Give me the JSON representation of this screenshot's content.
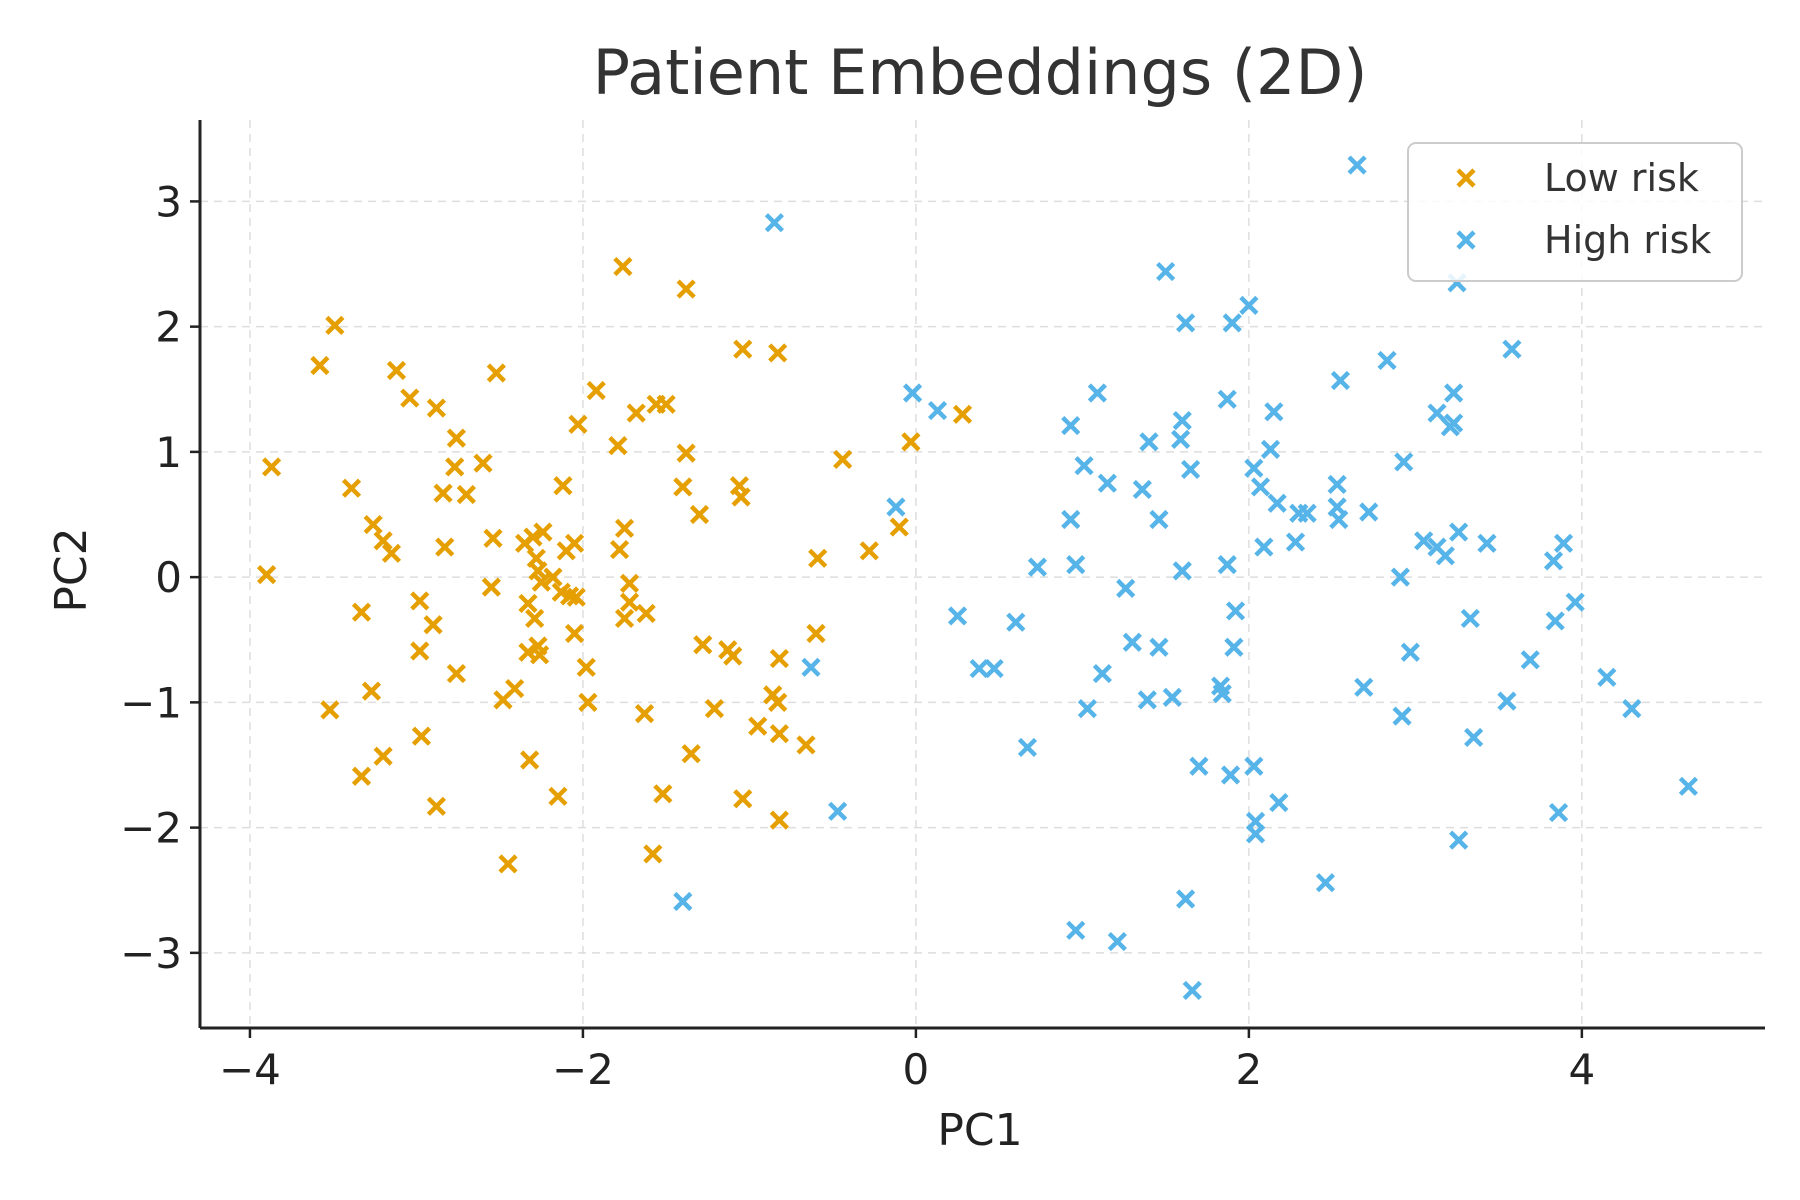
{
  "chart_data": {
    "type": "scatter",
    "title": "Patient Embeddings (2D)",
    "xlabel": "PC1",
    "ylabel": "PC2",
    "xlim": [
      -4.3,
      5.1
    ],
    "ylim": [
      -3.6,
      3.65
    ],
    "xticks": [
      -4,
      -2,
      0,
      2,
      4
    ],
    "yticks": [
      -3,
      -2,
      -1,
      0,
      1,
      2,
      3
    ],
    "xtick_labels": [
      "−4",
      "−2",
      "0",
      "2",
      "4"
    ],
    "ytick_labels": [
      "−3",
      "−2",
      "−1",
      "0",
      "1",
      "2",
      "3"
    ],
    "grid": true,
    "legend_position": "top-right",
    "marker": "x",
    "series": [
      {
        "name": "Low risk",
        "color": "#E69F00",
        "points": [
          [
            -3.9,
            0.02
          ],
          [
            -3.87,
            0.88
          ],
          [
            -3.58,
            1.69
          ],
          [
            -3.52,
            -1.06
          ],
          [
            -3.49,
            2.01
          ],
          [
            -3.39,
            0.71
          ],
          [
            -3.33,
            -0.28
          ],
          [
            -3.33,
            -1.59
          ],
          [
            -3.26,
            0.42
          ],
          [
            -3.27,
            -0.91
          ],
          [
            -3.2,
            0.29
          ],
          [
            -3.2,
            -1.43
          ],
          [
            -3.15,
            0.19
          ],
          [
            -3.12,
            1.65
          ],
          [
            -3.04,
            1.43
          ],
          [
            -2.98,
            -0.19
          ],
          [
            -2.98,
            -0.59
          ],
          [
            -2.97,
            -1.27
          ],
          [
            -2.9,
            -0.38
          ],
          [
            -2.88,
            -1.83
          ],
          [
            -2.88,
            1.35
          ],
          [
            -2.84,
            0.67
          ],
          [
            -2.83,
            0.24
          ],
          [
            -2.77,
            0.88
          ],
          [
            -2.76,
            1.11
          ],
          [
            -2.76,
            -0.77
          ],
          [
            -2.7,
            0.66
          ],
          [
            -2.6,
            0.91
          ],
          [
            -2.55,
            -0.08
          ],
          [
            -2.54,
            0.31
          ],
          [
            -2.52,
            1.63
          ],
          [
            -2.48,
            -0.98
          ],
          [
            -2.45,
            -2.29
          ],
          [
            -2.41,
            -0.89
          ],
          [
            -2.35,
            0.27
          ],
          [
            -2.33,
            -0.21
          ],
          [
            -2.33,
            -0.6
          ],
          [
            -2.32,
            -1.46
          ],
          [
            -2.3,
            0.32
          ],
          [
            -2.29,
            -0.33
          ],
          [
            -2.28,
            0.15
          ],
          [
            -2.27,
            0.05
          ],
          [
            -2.27,
            -0.55
          ],
          [
            -2.26,
            -0.62
          ],
          [
            -2.24,
            0.36
          ],
          [
            -2.25,
            -0.04
          ],
          [
            -2.18,
            0.0
          ],
          [
            -2.15,
            -1.75
          ],
          [
            -2.13,
            -0.12
          ],
          [
            -2.12,
            0.73
          ],
          [
            -2.1,
            0.21
          ],
          [
            -2.08,
            -0.15
          ],
          [
            -2.05,
            -0.45
          ],
          [
            -2.05,
            0.27
          ],
          [
            -2.04,
            -0.16
          ],
          [
            -2.03,
            1.22
          ],
          [
            -1.98,
            -0.72
          ],
          [
            -1.97,
            -1.0
          ],
          [
            -1.92,
            1.49
          ],
          [
            -1.79,
            1.05
          ],
          [
            -1.78,
            0.22
          ],
          [
            -1.76,
            2.48
          ],
          [
            -1.75,
            0.39
          ],
          [
            -1.75,
            -0.33
          ],
          [
            -1.72,
            -0.05
          ],
          [
            -1.72,
            -0.2
          ],
          [
            -1.68,
            1.31
          ],
          [
            -1.63,
            -1.09
          ],
          [
            -1.62,
            -0.29
          ],
          [
            -1.58,
            -2.21
          ],
          [
            -1.56,
            1.38
          ],
          [
            -1.52,
            -1.73
          ],
          [
            -1.5,
            1.38
          ],
          [
            -1.4,
            0.72
          ],
          [
            -1.38,
            2.3
          ],
          [
            -1.38,
            0.99
          ],
          [
            -1.35,
            -1.41
          ],
          [
            -1.3,
            0.5
          ],
          [
            -1.28,
            -0.54
          ],
          [
            -1.21,
            -1.05
          ],
          [
            -1.13,
            -0.58
          ],
          [
            -1.1,
            -0.63
          ],
          [
            -1.06,
            0.73
          ],
          [
            -1.05,
            0.64
          ],
          [
            -1.04,
            1.82
          ],
          [
            -1.04,
            -1.77
          ],
          [
            -0.95,
            -1.19
          ],
          [
            -0.86,
            -0.94
          ],
          [
            -0.83,
            1.79
          ],
          [
            -0.83,
            -1.0
          ],
          [
            -0.82,
            -1.25
          ],
          [
            -0.82,
            -1.94
          ],
          [
            -0.82,
            -0.65
          ],
          [
            -0.66,
            -1.34
          ],
          [
            -0.6,
            -0.45
          ],
          [
            -0.59,
            0.15
          ],
          [
            -0.44,
            0.94
          ],
          [
            -0.28,
            0.21
          ],
          [
            -0.1,
            0.4
          ],
          [
            -0.03,
            1.08
          ],
          [
            0.28,
            1.3
          ]
        ]
      },
      {
        "name": "High risk",
        "color": "#56B4E9",
        "points": [
          [
            -1.4,
            -2.59
          ],
          [
            -0.85,
            2.83
          ],
          [
            -0.63,
            -0.72
          ],
          [
            -0.47,
            -1.87
          ],
          [
            -0.12,
            0.56
          ],
          [
            -0.02,
            1.47
          ],
          [
            0.13,
            1.33
          ],
          [
            0.25,
            -0.31
          ],
          [
            0.38,
            -0.73
          ],
          [
            0.47,
            -0.73
          ],
          [
            0.6,
            -0.36
          ],
          [
            0.67,
            -1.36
          ],
          [
            0.73,
            0.08
          ],
          [
            0.93,
            1.21
          ],
          [
            0.93,
            0.46
          ],
          [
            0.96,
            0.1
          ],
          [
            0.96,
            -2.82
          ],
          [
            1.01,
            0.89
          ],
          [
            1.03,
            -1.05
          ],
          [
            1.09,
            1.47
          ],
          [
            1.12,
            -0.77
          ],
          [
            1.15,
            0.75
          ],
          [
            1.21,
            -2.91
          ],
          [
            1.26,
            -0.09
          ],
          [
            1.3,
            -0.52
          ],
          [
            1.36,
            0.7
          ],
          [
            1.39,
            -0.98
          ],
          [
            1.4,
            1.08
          ],
          [
            1.46,
            0.46
          ],
          [
            1.46,
            -0.56
          ],
          [
            1.5,
            2.44
          ],
          [
            1.54,
            -0.96
          ],
          [
            1.59,
            1.1
          ],
          [
            1.6,
            1.25
          ],
          [
            1.6,
            0.05
          ],
          [
            1.62,
            2.03
          ],
          [
            1.62,
            -2.57
          ],
          [
            1.65,
            0.86
          ],
          [
            1.66,
            -3.3
          ],
          [
            1.7,
            -1.51
          ],
          [
            1.83,
            -0.87
          ],
          [
            1.84,
            -0.93
          ],
          [
            1.87,
            1.42
          ],
          [
            1.87,
            0.1
          ],
          [
            1.89,
            -1.58
          ],
          [
            1.9,
            2.03
          ],
          [
            1.91,
            -0.56
          ],
          [
            1.92,
            -0.27
          ],
          [
            2.0,
            2.17
          ],
          [
            2.03,
            0.87
          ],
          [
            2.03,
            -1.51
          ],
          [
            2.04,
            -1.95
          ],
          [
            2.04,
            -2.05
          ],
          [
            2.07,
            0.72
          ],
          [
            2.09,
            0.24
          ],
          [
            2.13,
            1.02
          ],
          [
            2.15,
            1.32
          ],
          [
            2.17,
            0.59
          ],
          [
            2.18,
            -1.8
          ],
          [
            2.28,
            0.28
          ],
          [
            2.3,
            0.51
          ],
          [
            2.35,
            0.51
          ],
          [
            2.46,
            -2.44
          ],
          [
            2.53,
            0.74
          ],
          [
            2.53,
            0.56
          ],
          [
            2.54,
            0.46
          ],
          [
            2.55,
            1.57
          ],
          [
            2.65,
            3.29
          ],
          [
            2.69,
            -0.88
          ],
          [
            2.72,
            0.52
          ],
          [
            2.83,
            1.73
          ],
          [
            2.91,
            0.0
          ],
          [
            2.92,
            -1.11
          ],
          [
            2.93,
            0.92
          ],
          [
            2.97,
            -0.6
          ],
          [
            3.05,
            0.29
          ],
          [
            3.13,
            1.31
          ],
          [
            3.13,
            0.24
          ],
          [
            3.18,
            0.17
          ],
          [
            3.21,
            1.2
          ],
          [
            3.23,
            1.23
          ],
          [
            3.23,
            1.47
          ],
          [
            3.25,
            2.35
          ],
          [
            3.26,
            0.36
          ],
          [
            3.26,
            -2.1
          ],
          [
            3.33,
            -0.33
          ],
          [
            3.35,
            -1.28
          ],
          [
            3.43,
            0.27
          ],
          [
            3.55,
            -0.99
          ],
          [
            3.58,
            1.82
          ],
          [
            3.69,
            -0.66
          ],
          [
            3.83,
            0.13
          ],
          [
            3.84,
            -0.35
          ],
          [
            3.86,
            -1.88
          ],
          [
            3.89,
            0.27
          ],
          [
            3.96,
            -0.2
          ],
          [
            4.15,
            -0.8
          ],
          [
            4.3,
            -1.05
          ],
          [
            4.64,
            -1.67
          ]
        ]
      }
    ]
  }
}
